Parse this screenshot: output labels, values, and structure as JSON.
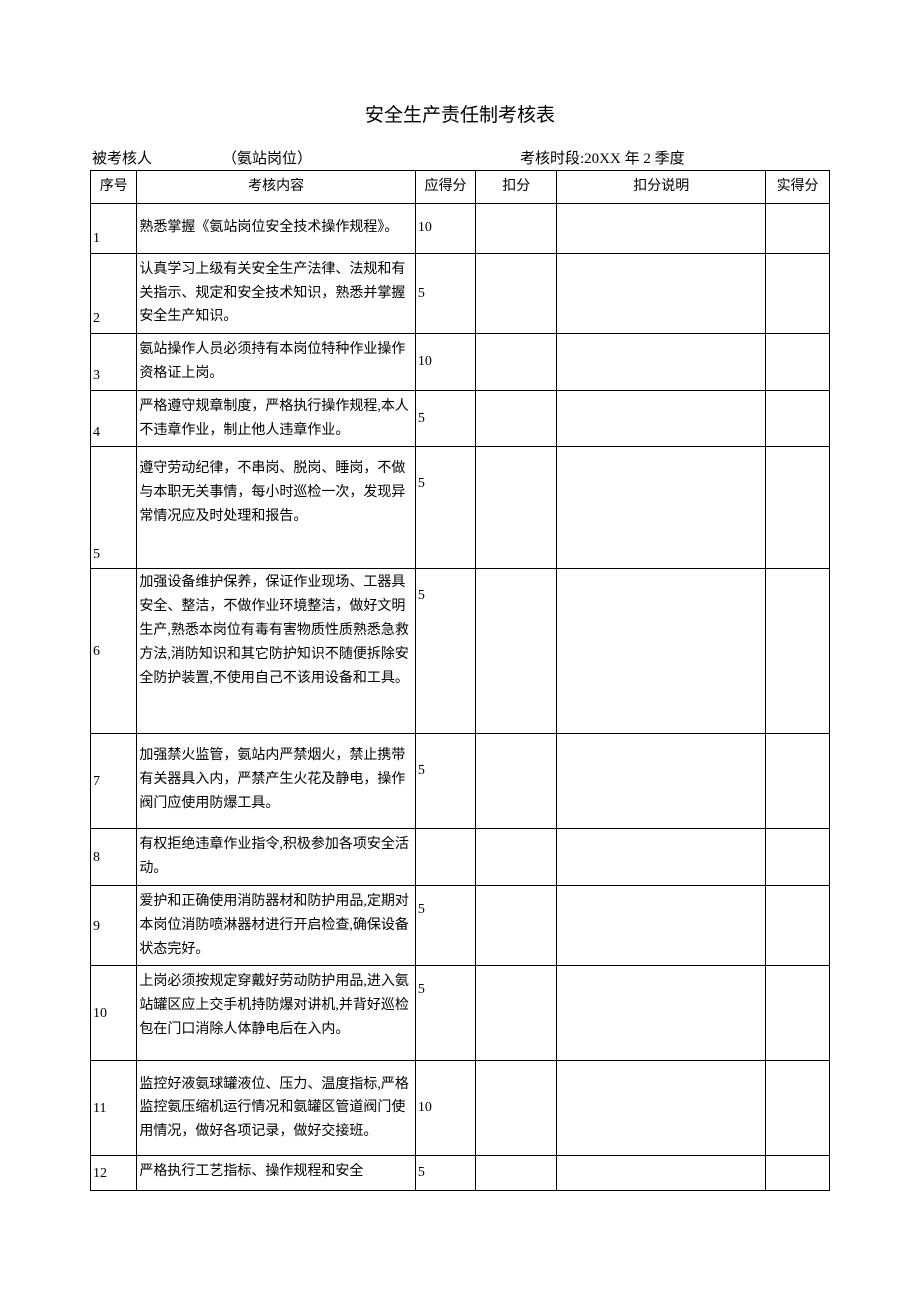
{
  "title": "安全生产责任制考核表",
  "meta": {
    "assessee_label": "被考核人",
    "position": "（氨站岗位）",
    "period_label": "考核时段:",
    "period_value": "20XX 年 2 季度"
  },
  "columns": {
    "seq": "序号",
    "content": "考核内容",
    "score": "应得分",
    "deduct": "扣分",
    "explain": "扣分说明",
    "actual": "实得分"
  },
  "rows": [
    {
      "seq": "1",
      "content": "熟悉掌握《氨站岗位安全技术操作规程》。",
      "score": "10"
    },
    {
      "seq": "2",
      "content": "认真学习上级有关安全生产法律、法规和有关指示、规定和安全技术知识，熟悉并掌握安全生产知识。",
      "score": "5"
    },
    {
      "seq": "3",
      "content": "氨站操作人员必须持有本岗位特种作业操作资格证上岗。",
      "score": "10"
    },
    {
      "seq": "4",
      "content": "严格遵守规章制度，严格执行操作规程,本人不违章作业，制止他人违章作业。",
      "score": "5"
    },
    {
      "seq": "5",
      "content": "遵守劳动纪律，不串岗、脱岗、睡岗，不做与本职无关事情，每小时巡检一次，发现异常情况应及时处理和报告。",
      "score": "5"
    },
    {
      "seq": "6",
      "content": "加强设备维护保养，保证作业现场、工器具安全、整洁，不做作业环境整洁，做好文明生产,熟悉本岗位有毒有害物质性质熟悉急救方法,消防知识和其它防护知识不随便拆除安全防护装置,不使用自己不该用设备和工具。",
      "score": "5"
    },
    {
      "seq": "7",
      "content": "加强禁火监管，氨站内严禁烟火，禁止携带有关器具入内，严禁产生火花及静电，操作阀门应使用防爆工具。",
      "score": "5"
    },
    {
      "seq": "8",
      "content": "有权拒绝违章作业指令,积极参加各项安全活动。",
      "score": ""
    },
    {
      "seq": "9",
      "content": "爱护和正确使用消防器材和防护用品,定期对本岗位消防喷淋器材进行开启检查,确保设备状态完好。",
      "score": "5"
    },
    {
      "seq": "10",
      "content": "上岗必须按规定穿戴好劳动防护用品,进入氨站罐区应上交手机持防爆对讲机,并背好巡检包在门口消除人体静电后在入内。",
      "score": "5"
    },
    {
      "seq": "11",
      "content": "监控好液氨球罐液位、压力、温度指标,严格监控氨压缩机运行情况和氨罐区管道阀门使用情况，做好各项记录，做好交接班。",
      "score": "10"
    },
    {
      "seq": "12",
      "content": "严格执行工艺指标、操作规程和安全",
      "score": "5"
    }
  ],
  "style": {
    "background_color": "#ffffff",
    "text_color": "#000000",
    "border_color": "#000000",
    "font_family": "SimSun"
  }
}
